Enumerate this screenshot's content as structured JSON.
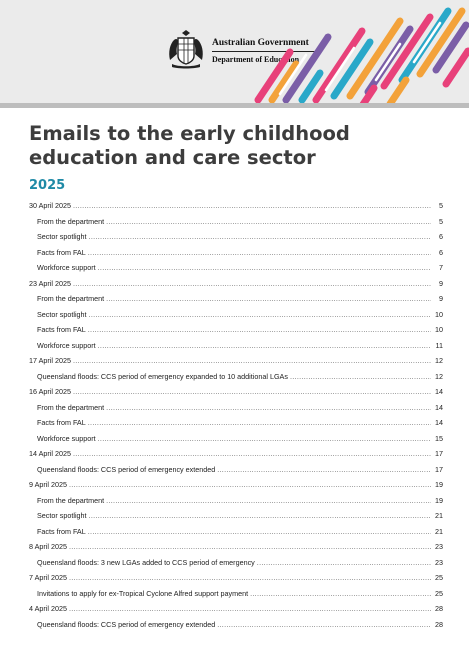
{
  "header": {
    "gov_line1": "Australian Government",
    "gov_line2": "Department of Education",
    "icons": [
      "coat-of-arms-icon"
    ],
    "stripe_colors": [
      "#e8417a",
      "#f3a23a",
      "#2aa8c9",
      "#7b5ea7",
      "#ffffff"
    ]
  },
  "document": {
    "title": "Emails to the early childhood education and care sector",
    "subtitle": "2025"
  },
  "toc": [
    {
      "label": "30 April 2025",
      "page": "5",
      "level": 1
    },
    {
      "label": "From the department",
      "page": "5",
      "level": 2
    },
    {
      "label": "Sector spotlight",
      "page": "6",
      "level": 2
    },
    {
      "label": "Facts from FAL",
      "page": "6",
      "level": 2
    },
    {
      "label": "Workforce support",
      "page": "7",
      "level": 2
    },
    {
      "label": "23 April 2025",
      "page": "9",
      "level": 1
    },
    {
      "label": "From the department",
      "page": "9",
      "level": 2
    },
    {
      "label": "Sector spotlight",
      "page": "10",
      "level": 2
    },
    {
      "label": "Facts from FAL",
      "page": "10",
      "level": 2
    },
    {
      "label": "Workforce support",
      "page": "11",
      "level": 2
    },
    {
      "label": "17 April 2025",
      "page": "12",
      "level": 1
    },
    {
      "label": "Queensland floods: CCS period of emergency expanded to 10 additional LGAs",
      "page": "12",
      "level": 2
    },
    {
      "label": "16 April 2025",
      "page": "14",
      "level": 1
    },
    {
      "label": "From the department",
      "page": "14",
      "level": 2
    },
    {
      "label": "Facts from FAL",
      "page": "14",
      "level": 2
    },
    {
      "label": "Workforce support",
      "page": "15",
      "level": 2
    },
    {
      "label": "14 April 2025",
      "page": "17",
      "level": 1
    },
    {
      "label": "Queensland floods: CCS period of emergency extended",
      "page": "17",
      "level": 2
    },
    {
      "label": "9 April 2025",
      "page": "19",
      "level": 1
    },
    {
      "label": "From the department",
      "page": "19",
      "level": 2
    },
    {
      "label": "Sector spotlight",
      "page": "21",
      "level": 2
    },
    {
      "label": "Facts from FAL",
      "page": "21",
      "level": 2
    },
    {
      "label": "8 April 2025",
      "page": "23",
      "level": 1
    },
    {
      "label": "Queensland floods: 3 new LGAs added to CCS period of emergency",
      "page": "23",
      "level": 2
    },
    {
      "label": "7 April 2025",
      "page": "25",
      "level": 1
    },
    {
      "label": "Invitations to apply for ex-Tropical Cyclone Alfred support payment",
      "page": "25",
      "level": 2
    },
    {
      "label": "4 April 2025",
      "page": "28",
      "level": 1
    },
    {
      "label": "Queensland floods: CCS period of emergency extended",
      "page": "28",
      "level": 2
    }
  ]
}
